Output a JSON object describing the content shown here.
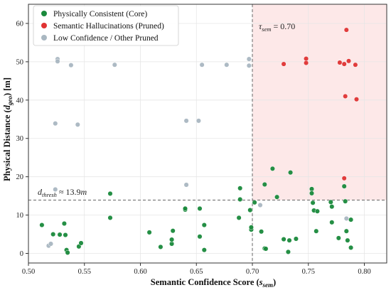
{
  "chart_data": {
    "type": "scatter",
    "xlabel_main": "Semantic Confidence Score (",
    "xlabel_sym": "s",
    "xlabel_sub": "sem",
    "xlabel_close": ")",
    "ylabel_main": "Physical Distance (",
    "ylabel_sym": "d",
    "ylabel_sub": "geo",
    "ylabel_close": ") [m]",
    "xlim": [
      0.5,
      0.82
    ],
    "ylim": [
      -2.5,
      65
    ],
    "x_ticks": [
      "0.50",
      "0.55",
      "0.60",
      "0.65",
      "0.70",
      "0.75",
      "0.80"
    ],
    "x_tick_values": [
      0.5,
      0.55,
      0.6,
      0.65,
      0.7,
      0.75,
      0.8
    ],
    "y_ticks": [
      "0",
      "10",
      "20",
      "30",
      "40",
      "50",
      "60"
    ],
    "y_tick_values": [
      0,
      10,
      20,
      30,
      40,
      50,
      60
    ],
    "grid": true,
    "legend_position": "top-left",
    "thresholds": {
      "tau_sem": 0.7,
      "d_thresh": 13.9
    },
    "annotations": {
      "tau_sym": "τ",
      "tau_sub": "sem",
      "tau_value": " = 0.70",
      "d_sym": "d",
      "d_sub": "thresh",
      "d_value": " ≈ 13.9",
      "d_unit": "m"
    },
    "pruned_region_color": "#fde8e8",
    "series": [
      {
        "name": "Physically Consistent (Core)",
        "color": "#1a8a3c",
        "points": [
          [
            0.512,
            7.4
          ],
          [
            0.522,
            5.0
          ],
          [
            0.528,
            4.9
          ],
          [
            0.532,
            7.8
          ],
          [
            0.533,
            4.8
          ],
          [
            0.534,
            0.9
          ],
          [
            0.535,
            0.2
          ],
          [
            0.545,
            1.8
          ],
          [
            0.547,
            2.7
          ],
          [
            0.573,
            9.3
          ],
          [
            0.573,
            15.6
          ],
          [
            0.608,
            5.5
          ],
          [
            0.618,
            1.7
          ],
          [
            0.628,
            2.5
          ],
          [
            0.628,
            3.6
          ],
          [
            0.629,
            5.9
          ],
          [
            0.64,
            11.4
          ],
          [
            0.64,
            11.7
          ],
          [
            0.653,
            11.7
          ],
          [
            0.653,
            4.4
          ],
          [
            0.657,
            7.4
          ],
          [
            0.657,
            0.9
          ],
          [
            0.689,
            14.1
          ],
          [
            0.689,
            17.0
          ],
          [
            0.688,
            9.3
          ],
          [
            0.698,
            11.3
          ],
          [
            0.699,
            6.2
          ],
          [
            0.699,
            6.8
          ],
          [
            0.702,
            13.3
          ],
          [
            0.708,
            5.7
          ],
          [
            0.711,
            1.3
          ],
          [
            0.712,
            1.2
          ],
          [
            0.711,
            18.0
          ],
          [
            0.718,
            22.1
          ],
          [
            0.722,
            14.7
          ],
          [
            0.728,
            3.7
          ],
          [
            0.732,
            0.4
          ],
          [
            0.733,
            3.4
          ],
          [
            0.734,
            21.1
          ],
          [
            0.739,
            3.8
          ],
          [
            0.753,
            16.8
          ],
          [
            0.753,
            15.7
          ],
          [
            0.754,
            13.2
          ],
          [
            0.755,
            11.2
          ],
          [
            0.757,
            5.8
          ],
          [
            0.758,
            11.0
          ],
          [
            0.77,
            13.4
          ],
          [
            0.771,
            12.2
          ],
          [
            0.771,
            8.1
          ],
          [
            0.777,
            4.0
          ],
          [
            0.782,
            17.5
          ],
          [
            0.783,
            13.6
          ],
          [
            0.784,
            5.8
          ],
          [
            0.785,
            3.4
          ],
          [
            0.788,
            8.8
          ],
          [
            0.788,
            1.5
          ]
        ]
      },
      {
        "name": "Semantic Hallucinations (Pruned)",
        "color": "#e03333",
        "points": [
          [
            0.728,
            49.4
          ],
          [
            0.748,
            50.8
          ],
          [
            0.748,
            49.7
          ],
          [
            0.778,
            49.8
          ],
          [
            0.782,
            49.4
          ],
          [
            0.784,
            58.3
          ],
          [
            0.786,
            50.2
          ],
          [
            0.792,
            49.2
          ],
          [
            0.793,
            40.2
          ],
          [
            0.783,
            41.0
          ],
          [
            0.782,
            19.6
          ]
        ]
      },
      {
        "name": "Low Confidence / Other Pruned",
        "color": "#a9b7c1",
        "points": [
          [
            0.526,
            50.7
          ],
          [
            0.526,
            50.1
          ],
          [
            0.538,
            49.1
          ],
          [
            0.577,
            49.2
          ],
          [
            0.655,
            49.2
          ],
          [
            0.677,
            49.2
          ],
          [
            0.697,
            50.7
          ],
          [
            0.697,
            49.0
          ],
          [
            0.524,
            33.9
          ],
          [
            0.544,
            33.6
          ],
          [
            0.641,
            34.6
          ],
          [
            0.652,
            34.6
          ],
          [
            0.641,
            17.9
          ],
          [
            0.524,
            16.7
          ],
          [
            0.518,
            2.0
          ],
          [
            0.52,
            2.5
          ],
          [
            0.707,
            12.6
          ],
          [
            0.784,
            9.1
          ]
        ]
      }
    ]
  }
}
